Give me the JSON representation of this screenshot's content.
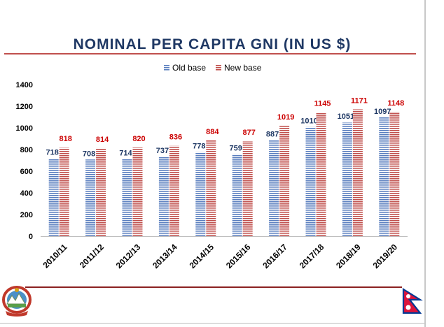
{
  "slide": {
    "title": "NOMINAL PER CAPITA GNI (IN US $)"
  },
  "colors": {
    "title": "#1f3864",
    "old_base": "#5b7fbf",
    "new_base": "#c0504d",
    "old_label": "#1f3864",
    "new_label": "#cc0000",
    "rule": "#c0504d"
  },
  "chart_data": {
    "type": "bar",
    "categories": [
      "2010/11",
      "2011/12",
      "2012/13",
      "2013/14",
      "2014/15",
      "2015/16",
      "2016/17",
      "2017/18",
      "2018/19",
      "2019/20"
    ],
    "series": [
      {
        "name": "Old base",
        "values": [
          718,
          708,
          714,
          737,
          778,
          759,
          887,
          1010,
          1051,
          1097
        ]
      },
      {
        "name": "New base",
        "values": [
          818,
          814,
          820,
          836,
          884,
          877,
          1019,
          1145,
          1171,
          1148
        ]
      }
    ],
    "ylim": [
      0,
      1400
    ],
    "yticks": [
      0,
      200,
      400,
      600,
      800,
      1000,
      1200,
      1400
    ],
    "legend": "top-center",
    "grid": false,
    "pattern": "horizontal-stripes"
  },
  "icons": {
    "emblem": "nepal-emblem-icon",
    "flag": "nepal-flag-icon"
  }
}
